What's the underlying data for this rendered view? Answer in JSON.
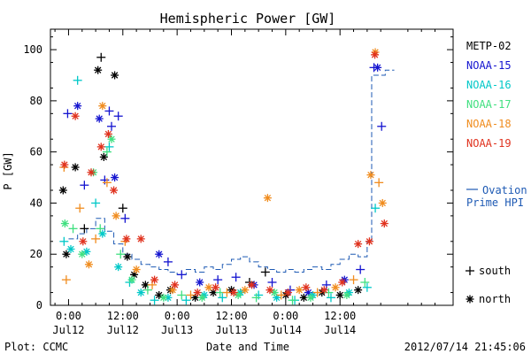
{
  "chart_data": {
    "type": "scatter",
    "title": "Hemispheric Power [GW]",
    "xlabel": "Date and Time",
    "ylabel": "P [GW]",
    "ylim": [
      0,
      108
    ],
    "xlim": [
      -4,
      85
    ],
    "x_unit": "hours since 2012-07-12 00:00 UT",
    "grid": false,
    "yticks": [
      0,
      20,
      40,
      60,
      80,
      100
    ],
    "xticks": [
      {
        "x": 0,
        "time": "0:00",
        "date": "Jul12"
      },
      {
        "x": 12,
        "time": "12:00",
        "date": "Jul12"
      },
      {
        "x": 24,
        "time": "0:00",
        "date": "Jul13"
      },
      {
        "x": 36,
        "time": "12:00",
        "date": "Jul13"
      },
      {
        "x": 48,
        "time": "0:00",
        "date": "Jul14"
      },
      {
        "x": 60,
        "time": "12:00",
        "date": "Jul14"
      }
    ],
    "legend_placement": "right",
    "marker_legend": [
      {
        "symbol": "+",
        "label": "south"
      },
      {
        "symbol": "*",
        "label": "north"
      }
    ],
    "series": [
      {
        "name": "METP-02",
        "color": "#000000",
        "points": [
          {
            "x": -1.2,
            "y": 45,
            "m": "*"
          },
          {
            "x": -0.5,
            "y": 20,
            "m": "*"
          },
          {
            "x": 1.5,
            "y": 54,
            "m": "*"
          },
          {
            "x": 3.5,
            "y": 30,
            "m": "+"
          },
          {
            "x": 6.5,
            "y": 92,
            "m": "*"
          },
          {
            "x": 7.2,
            "y": 97,
            "m": "+"
          },
          {
            "x": 7.8,
            "y": 58,
            "m": "*"
          },
          {
            "x": 10.2,
            "y": 90,
            "m": "*"
          },
          {
            "x": 12.0,
            "y": 38,
            "m": "+"
          },
          {
            "x": 13.0,
            "y": 19,
            "m": "*"
          },
          {
            "x": 14.5,
            "y": 12,
            "m": "*"
          },
          {
            "x": 17.0,
            "y": 8,
            "m": "*"
          },
          {
            "x": 20.0,
            "y": 4,
            "m": "*"
          },
          {
            "x": 22.5,
            "y": 6,
            "m": "*"
          },
          {
            "x": 28.0,
            "y": 3,
            "m": "*"
          },
          {
            "x": 32.0,
            "y": 5,
            "m": "*"
          },
          {
            "x": 36.0,
            "y": 6,
            "m": "*"
          },
          {
            "x": 40.0,
            "y": 9,
            "m": "+"
          },
          {
            "x": 43.5,
            "y": 13,
            "m": "+"
          },
          {
            "x": 48.0,
            "y": 4,
            "m": "*"
          },
          {
            "x": 52.0,
            "y": 3,
            "m": "*"
          },
          {
            "x": 56.0,
            "y": 5,
            "m": "*"
          },
          {
            "x": 60.0,
            "y": 4,
            "m": "*"
          },
          {
            "x": 64.0,
            "y": 6,
            "m": "*"
          }
        ]
      },
      {
        "name": "NOAA-15",
        "color": "#1515d0",
        "points": [
          {
            "x": -0.2,
            "y": 75,
            "m": "+"
          },
          {
            "x": 2.0,
            "y": 78,
            "m": "*"
          },
          {
            "x": 3.5,
            "y": 47,
            "m": "+"
          },
          {
            "x": 6.8,
            "y": 73,
            "m": "*"
          },
          {
            "x": 8.0,
            "y": 49,
            "m": "+"
          },
          {
            "x": 9.0,
            "y": 76,
            "m": "+"
          },
          {
            "x": 9.5,
            "y": 70,
            "m": "+"
          },
          {
            "x": 10.2,
            "y": 50,
            "m": "*"
          },
          {
            "x": 11.0,
            "y": 74,
            "m": "+"
          },
          {
            "x": 12.5,
            "y": 34,
            "m": "+"
          },
          {
            "x": 20.0,
            "y": 20,
            "m": "*"
          },
          {
            "x": 22.0,
            "y": 17,
            "m": "+"
          },
          {
            "x": 25.0,
            "y": 12,
            "m": "+"
          },
          {
            "x": 29.0,
            "y": 9,
            "m": "*"
          },
          {
            "x": 33.0,
            "y": 10,
            "m": "+"
          },
          {
            "x": 37.0,
            "y": 11,
            "m": "+"
          },
          {
            "x": 41.0,
            "y": 8,
            "m": "*"
          },
          {
            "x": 45.0,
            "y": 9,
            "m": "+"
          },
          {
            "x": 49.0,
            "y": 6,
            "m": "+"
          },
          {
            "x": 53.0,
            "y": 5,
            "m": "*"
          },
          {
            "x": 57.0,
            "y": 8,
            "m": "+"
          },
          {
            "x": 61.0,
            "y": 10,
            "m": "*"
          },
          {
            "x": 64.5,
            "y": 14,
            "m": "+"
          },
          {
            "x": 67.5,
            "y": 93,
            "m": "+"
          },
          {
            "x": 68.3,
            "y": 93,
            "m": "*"
          },
          {
            "x": 69.2,
            "y": 70,
            "m": "+"
          }
        ]
      },
      {
        "name": "NOAA-16",
        "color": "#00c8c8",
        "points": [
          {
            "x": -1.0,
            "y": 25,
            "m": "+"
          },
          {
            "x": 0.5,
            "y": 22,
            "m": "*"
          },
          {
            "x": 2.0,
            "y": 88,
            "m": "+"
          },
          {
            "x": 4.0,
            "y": 21,
            "m": "*"
          },
          {
            "x": 6.0,
            "y": 40,
            "m": "+"
          },
          {
            "x": 7.5,
            "y": 28,
            "m": "*"
          },
          {
            "x": 9.0,
            "y": 62,
            "m": "+"
          },
          {
            "x": 11.0,
            "y": 15,
            "m": "*"
          },
          {
            "x": 13.5,
            "y": 9,
            "m": "+"
          },
          {
            "x": 16.0,
            "y": 5,
            "m": "*"
          },
          {
            "x": 19.0,
            "y": 2,
            "m": "+"
          },
          {
            "x": 22.0,
            "y": 3,
            "m": "*"
          },
          {
            "x": 26.0,
            "y": 2,
            "m": "+"
          },
          {
            "x": 30.0,
            "y": 4,
            "m": "*"
          },
          {
            "x": 34.0,
            "y": 3,
            "m": "+"
          },
          {
            "x": 38.0,
            "y": 5,
            "m": "*"
          },
          {
            "x": 42.0,
            "y": 4,
            "m": "+"
          },
          {
            "x": 46.0,
            "y": 3,
            "m": "*"
          },
          {
            "x": 50.0,
            "y": 2,
            "m": "+"
          },
          {
            "x": 54.0,
            "y": 4,
            "m": "*"
          },
          {
            "x": 58.0,
            "y": 3,
            "m": "+"
          },
          {
            "x": 62.0,
            "y": 5,
            "m": "*"
          },
          {
            "x": 66.0,
            "y": 7,
            "m": "+"
          },
          {
            "x": 67.8,
            "y": 38,
            "m": "+"
          }
        ]
      },
      {
        "name": "NOAA-17",
        "color": "#40e080",
        "points": [
          {
            "x": -0.8,
            "y": 32,
            "m": "*"
          },
          {
            "x": 1.0,
            "y": 30,
            "m": "+"
          },
          {
            "x": 3.0,
            "y": 20,
            "m": "*"
          },
          {
            "x": 5.5,
            "y": 52,
            "m": "*"
          },
          {
            "x": 7.0,
            "y": 30,
            "m": "+"
          },
          {
            "x": 8.5,
            "y": 60,
            "m": "+"
          },
          {
            "x": 9.5,
            "y": 65,
            "m": "*"
          },
          {
            "x": 11.5,
            "y": 20,
            "m": "+"
          },
          {
            "x": 14.0,
            "y": 10,
            "m": "*"
          },
          {
            "x": 17.5,
            "y": 6,
            "m": "+"
          },
          {
            "x": 21.0,
            "y": 3,
            "m": "*"
          },
          {
            "x": 25.0,
            "y": 4,
            "m": "+"
          },
          {
            "x": 29.5,
            "y": 3,
            "m": "*"
          },
          {
            "x": 33.5,
            "y": 5,
            "m": "+"
          },
          {
            "x": 37.5,
            "y": 4,
            "m": "*"
          },
          {
            "x": 41.5,
            "y": 3,
            "m": "+"
          },
          {
            "x": 45.5,
            "y": 5,
            "m": "*"
          },
          {
            "x": 49.5,
            "y": 2,
            "m": "+"
          },
          {
            "x": 53.5,
            "y": 3,
            "m": "*"
          },
          {
            "x": 57.5,
            "y": 5,
            "m": "+"
          },
          {
            "x": 61.5,
            "y": 4,
            "m": "*"
          },
          {
            "x": 65.5,
            "y": 9,
            "m": "+"
          }
        ]
      },
      {
        "name": "NOAA-18",
        "color": "#f08c1e",
        "points": [
          {
            "x": -1.0,
            "y": 54,
            "m": "+"
          },
          {
            "x": -0.5,
            "y": 10,
            "m": "+"
          },
          {
            "x": 2.5,
            "y": 38,
            "m": "+"
          },
          {
            "x": 4.5,
            "y": 16,
            "m": "*"
          },
          {
            "x": 6.0,
            "y": 26,
            "m": "+"
          },
          {
            "x": 7.5,
            "y": 78,
            "m": "*"
          },
          {
            "x": 8.5,
            "y": 48,
            "m": "+"
          },
          {
            "x": 10.5,
            "y": 35,
            "m": "*"
          },
          {
            "x": 12.5,
            "y": 25,
            "m": "+"
          },
          {
            "x": 15.0,
            "y": 14,
            "m": "*"
          },
          {
            "x": 18.5,
            "y": 8,
            "m": "+"
          },
          {
            "x": 23.0,
            "y": 6,
            "m": "*"
          },
          {
            "x": 27.0,
            "y": 4,
            "m": "+"
          },
          {
            "x": 31.0,
            "y": 7,
            "m": "*"
          },
          {
            "x": 35.0,
            "y": 5,
            "m": "+"
          },
          {
            "x": 39.0,
            "y": 6,
            "m": "*"
          },
          {
            "x": 44.0,
            "y": 42,
            "m": "*"
          },
          {
            "x": 47.0,
            "y": 4,
            "m": "+"
          },
          {
            "x": 51.0,
            "y": 6,
            "m": "*"
          },
          {
            "x": 55.0,
            "y": 5,
            "m": "+"
          },
          {
            "x": 59.0,
            "y": 7,
            "m": "*"
          },
          {
            "x": 63.0,
            "y": 10,
            "m": "+"
          },
          {
            "x": 66.8,
            "y": 51,
            "m": "*"
          },
          {
            "x": 67.8,
            "y": 99,
            "m": "*"
          },
          {
            "x": 68.6,
            "y": 48,
            "m": "+"
          },
          {
            "x": 69.4,
            "y": 40,
            "m": "*"
          }
        ]
      },
      {
        "name": "NOAA-19",
        "color": "#e0321e",
        "points": [
          {
            "x": -0.9,
            "y": 55,
            "m": "*"
          },
          {
            "x": 1.5,
            "y": 74,
            "m": "*"
          },
          {
            "x": 3.2,
            "y": 25,
            "m": "*"
          },
          {
            "x": 5.0,
            "y": 52,
            "m": "*"
          },
          {
            "x": 7.2,
            "y": 62,
            "m": "*"
          },
          {
            "x": 8.8,
            "y": 67,
            "m": "*"
          },
          {
            "x": 10.0,
            "y": 45,
            "m": "*"
          },
          {
            "x": 12.8,
            "y": 26,
            "m": "*"
          },
          {
            "x": 16.0,
            "y": 26,
            "m": "*"
          },
          {
            "x": 19.0,
            "y": 10,
            "m": "*"
          },
          {
            "x": 23.5,
            "y": 8,
            "m": "*"
          },
          {
            "x": 28.5,
            "y": 5,
            "m": "*"
          },
          {
            "x": 32.5,
            "y": 7,
            "m": "*"
          },
          {
            "x": 36.5,
            "y": 5,
            "m": "*"
          },
          {
            "x": 40.5,
            "y": 8,
            "m": "*"
          },
          {
            "x": 44.5,
            "y": 6,
            "m": "*"
          },
          {
            "x": 48.5,
            "y": 5,
            "m": "*"
          },
          {
            "x": 52.5,
            "y": 7,
            "m": "*"
          },
          {
            "x": 56.5,
            "y": 6,
            "m": "*"
          },
          {
            "x": 60.5,
            "y": 9,
            "m": "*"
          },
          {
            "x": 64.0,
            "y": 24,
            "m": "*"
          },
          {
            "x": 66.5,
            "y": 25,
            "m": "*"
          },
          {
            "x": 67.7,
            "y": 98,
            "m": "*"
          },
          {
            "x": 69.8,
            "y": 32,
            "m": "*"
          }
        ]
      }
    ],
    "ovation": {
      "name": "Ovation Prime HPI",
      "legend_line1": "Ovation",
      "legend_line2": "Prime HPI",
      "color": "#1e5ab4",
      "steps": [
        {
          "x": 0,
          "y": 26
        },
        {
          "x": 2,
          "y": 28
        },
        {
          "x": 4,
          "y": 30
        },
        {
          "x": 6,
          "y": 34
        },
        {
          "x": 8,
          "y": 29
        },
        {
          "x": 10,
          "y": 24
        },
        {
          "x": 12,
          "y": 20
        },
        {
          "x": 14,
          "y": 18
        },
        {
          "x": 16,
          "y": 16
        },
        {
          "x": 18,
          "y": 15
        },
        {
          "x": 20,
          "y": 14
        },
        {
          "x": 22,
          "y": 13
        },
        {
          "x": 24,
          "y": 12
        },
        {
          "x": 26,
          "y": 14
        },
        {
          "x": 28,
          "y": 13
        },
        {
          "x": 30,
          "y": 15
        },
        {
          "x": 32,
          "y": 14
        },
        {
          "x": 34,
          "y": 16
        },
        {
          "x": 36,
          "y": 18
        },
        {
          "x": 38,
          "y": 19
        },
        {
          "x": 40,
          "y": 17
        },
        {
          "x": 42,
          "y": 15
        },
        {
          "x": 44,
          "y": 14
        },
        {
          "x": 46,
          "y": 13
        },
        {
          "x": 48,
          "y": 14
        },
        {
          "x": 50,
          "y": 13
        },
        {
          "x": 52,
          "y": 14
        },
        {
          "x": 54,
          "y": 15
        },
        {
          "x": 56,
          "y": 14
        },
        {
          "x": 58,
          "y": 16
        },
        {
          "x": 60,
          "y": 18
        },
        {
          "x": 62,
          "y": 20
        },
        {
          "x": 64,
          "y": 19
        },
        {
          "x": 66,
          "y": 25
        },
        {
          "x": 67,
          "y": 90
        },
        {
          "x": 70,
          "y": 92
        },
        {
          "x": 72,
          "y": 92
        }
      ]
    }
  },
  "footer": {
    "plot_credit": "Plot: CCMC",
    "timestamp": "2012/07/14 21:45:06"
  }
}
